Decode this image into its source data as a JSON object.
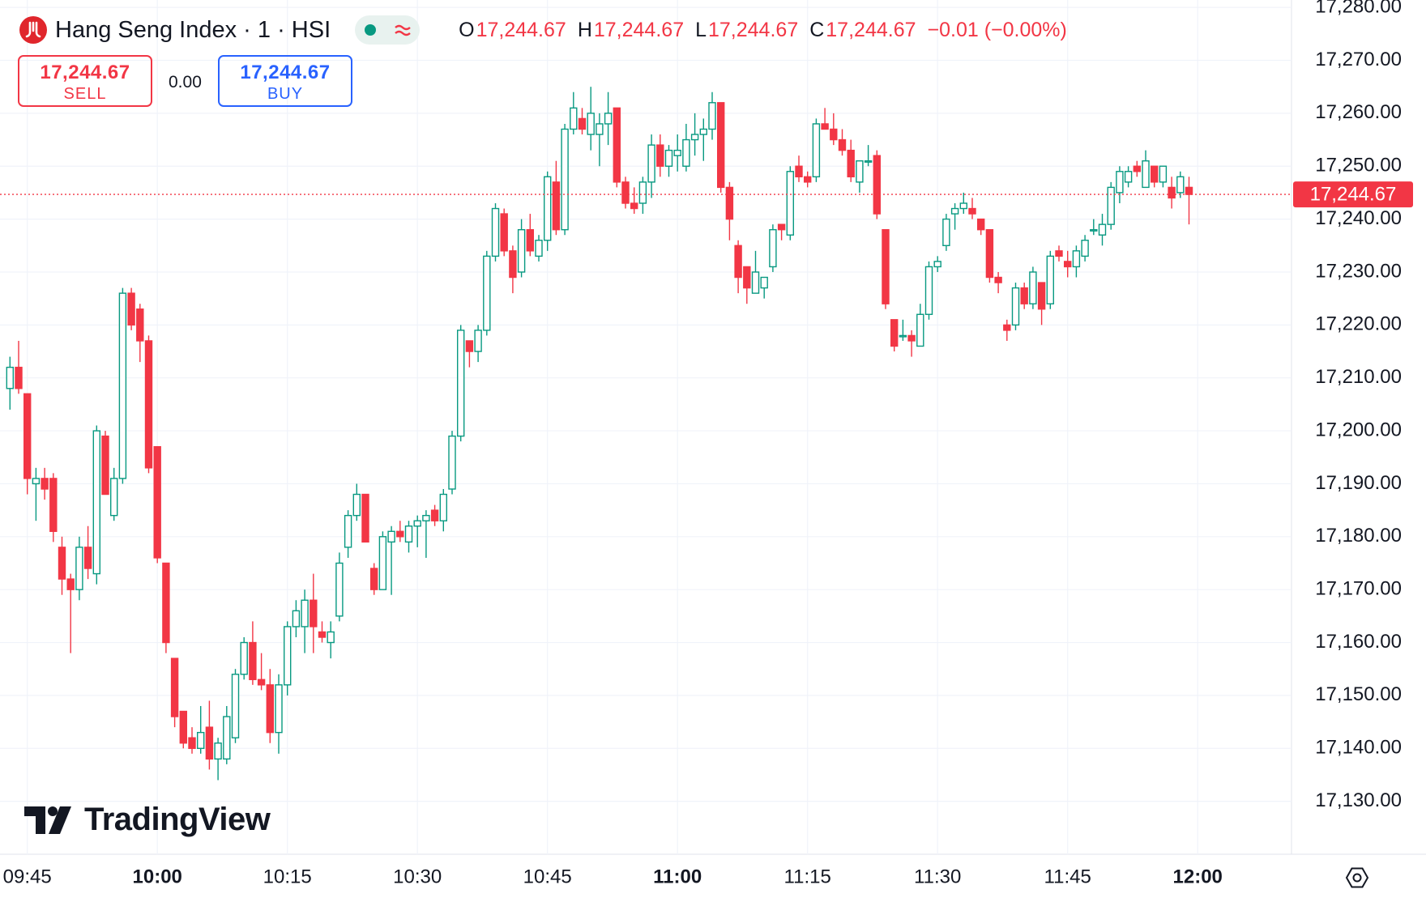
{
  "header": {
    "title": "Hang Seng Index · 1 · HSI",
    "ohlc": [
      {
        "label": "O",
        "value": "17,244.67"
      },
      {
        "label": "H",
        "value": "17,244.67"
      },
      {
        "label": "L",
        "value": "17,244.67"
      },
      {
        "label": "C",
        "value": "17,244.67"
      }
    ],
    "change": "−0.01 (−0.00%)",
    "sell": {
      "price": "17,244.67",
      "label": "SELL"
    },
    "spread": "0.00",
    "buy": {
      "price": "17,244.67",
      "label": "BUY"
    },
    "logo": "TradingView"
  },
  "chart_data": {
    "type": "candlestick",
    "up_color": "#089981",
    "down_color": "#f23645",
    "grid": true,
    "ylim": [
      17120,
      17281.4
    ],
    "yticks": [
      {
        "value": 17130,
        "label": "17,130.00"
      },
      {
        "value": 17140,
        "label": "17,140.00"
      },
      {
        "value": 17150,
        "label": "17,150.00"
      },
      {
        "value": 17160,
        "label": "17,160.00"
      },
      {
        "value": 17170,
        "label": "17,170.00"
      },
      {
        "value": 17180,
        "label": "17,180.00"
      },
      {
        "value": 17190,
        "label": "17,190.00"
      },
      {
        "value": 17200,
        "label": "17,200.00"
      },
      {
        "value": 17210,
        "label": "17,210.00"
      },
      {
        "value": 17220,
        "label": "17,220.00"
      },
      {
        "value": 17230,
        "label": "17,230.00"
      },
      {
        "value": 17240,
        "label": "17,240.00"
      },
      {
        "value": 17250,
        "label": "17,250.00"
      },
      {
        "value": 17260,
        "label": "17,260.00"
      },
      {
        "value": 17270,
        "label": "17,270.00"
      },
      {
        "value": 17280,
        "label": "17,280.00"
      }
    ],
    "xticks": [
      "09:45",
      "10:00",
      "10:15",
      "10:30",
      "10:45",
      "11:00",
      "11:15",
      "11:30",
      "11:45",
      "12:00"
    ],
    "last_price": {
      "value": 17244.67,
      "label": "17,244.67"
    },
    "x": [
      "09:43",
      "09:44",
      "09:45",
      "09:46",
      "09:47",
      "09:48",
      "09:49",
      "09:50",
      "09:51",
      "09:52",
      "09:53",
      "09:54",
      "09:55",
      "09:56",
      "09:57",
      "09:58",
      "09:59",
      "10:00",
      "10:01",
      "10:02",
      "10:03",
      "10:04",
      "10:05",
      "10:06",
      "10:07",
      "10:08",
      "10:09",
      "10:10",
      "10:11",
      "10:12",
      "10:13",
      "10:14",
      "10:15",
      "10:16",
      "10:17",
      "10:18",
      "10:19",
      "10:20",
      "10:21",
      "10:22",
      "10:23",
      "10:24",
      "10:25",
      "10:26",
      "10:27",
      "10:28",
      "10:29",
      "10:30",
      "10:31",
      "10:32",
      "10:33",
      "10:34",
      "10:35",
      "10:36",
      "10:37",
      "10:38",
      "10:39",
      "10:40",
      "10:41",
      "10:42",
      "10:43",
      "10:44",
      "10:45",
      "10:46",
      "10:47",
      "10:48",
      "10:49",
      "10:50",
      "10:51",
      "10:52",
      "10:53",
      "10:54",
      "10:55",
      "10:56",
      "10:57",
      "10:58",
      "10:59",
      "11:00",
      "11:01",
      "11:02",
      "11:03",
      "11:04",
      "11:05",
      "11:06",
      "11:07",
      "11:08",
      "11:09",
      "11:10",
      "11:11",
      "11:12",
      "11:13",
      "11:14",
      "11:15",
      "11:16",
      "11:17",
      "11:18",
      "11:19",
      "11:20",
      "11:21",
      "11:22",
      "11:23",
      "11:24",
      "11:25",
      "11:26",
      "11:27",
      "11:28",
      "11:29",
      "11:30",
      "11:31",
      "11:32",
      "11:33",
      "11:34",
      "11:35",
      "11:36",
      "11:37",
      "11:38",
      "11:39",
      "11:40",
      "11:41",
      "11:42",
      "11:43",
      "11:44",
      "11:45",
      "11:46",
      "11:47",
      "11:48",
      "11:49",
      "11:50",
      "11:51",
      "11:52",
      "11:53",
      "11:54",
      "11:55",
      "11:56",
      "11:57",
      "11:58",
      "11:59"
    ],
    "open": [
      17208,
      17212,
      17207,
      17190,
      17191,
      17191,
      17178,
      17172,
      17170,
      17178,
      17173,
      17199,
      17184,
      17191,
      17226,
      17223,
      17217,
      17197,
      17175,
      17157,
      17147,
      17142,
      17140,
      17144,
      17138,
      17138,
      17142,
      17154,
      17160,
      17153,
      17152,
      17143,
      17152,
      17163,
      17163,
      17168,
      17162,
      17160,
      17165,
      17178,
      17184,
      17188,
      17174,
      17170,
      17179,
      17181,
      17179,
      17182,
      17183,
      17185,
      17183,
      17189,
      17199,
      17217,
      17215,
      17219,
      17233,
      17241,
      17234,
      17230,
      17238,
      17233,
      17236,
      17247,
      17238,
      17257,
      17259,
      17256,
      17256,
      17258,
      17261,
      17247,
      17243,
      17243,
      17247,
      17254,
      17250,
      17252,
      17250,
      17255,
      17256,
      17257,
      17262,
      17246,
      17235,
      17231,
      17226,
      17227,
      17231,
      17239,
      17237,
      17250,
      17248,
      17248,
      17258,
      17257,
      17255,
      17253,
      17247,
      17251,
      17252,
      17238,
      17221,
      17218,
      17218,
      17216,
      17222,
      17231,
      17235,
      17241,
      17242,
      17242,
      17240,
      17238,
      17229,
      17220,
      17220,
      17227,
      17224,
      17228,
      17224,
      17234,
      17232,
      17231,
      17233,
      17238,
      17237,
      17239,
      17245,
      17247,
      17250,
      17246,
      17250,
      17247,
      17246,
      17245,
      17246
    ],
    "high": [
      17214,
      17217,
      17207,
      17193,
      17193,
      17192,
      17180,
      17173,
      17180,
      17182,
      17201,
      17200,
      17193,
      17227,
      17227,
      17224,
      17218,
      17197,
      17175,
      17157,
      17147,
      17144,
      17148,
      17149,
      17142,
      17148,
      17155,
      17161,
      17164,
      17158,
      17155,
      17154,
      17164,
      17168,
      17170,
      17173,
      17164,
      17164,
      17177,
      17185,
      17190,
      17188,
      17175,
      17181,
      17182,
      17183,
      17183,
      17184,
      17185,
      17186,
      17189,
      17200,
      17220,
      17217,
      17220,
      17234,
      17243,
      17242,
      17235,
      17240,
      17241,
      17237,
      17249,
      17251,
      17258,
      17264,
      17261,
      17265,
      17260,
      17264,
      17261,
      17248,
      17246,
      17248,
      17256,
      17256,
      17254,
      17256,
      17258,
      17260,
      17259,
      17264,
      17262,
      17247,
      17236,
      17231,
      17234,
      17229,
      17239,
      17239,
      17250,
      17252,
      17249,
      17259,
      17261,
      17260,
      17257,
      17255,
      17251,
      17254,
      17253,
      17238,
      17221,
      17221,
      17219,
      17224,
      17232,
      17233,
      17241,
      17243,
      17245,
      17244,
      17240,
      17238,
      17230,
      17221,
      17228,
      17228,
      17231,
      17228,
      17234,
      17235,
      17234,
      17235,
      17237,
      17240,
      17241,
      17247,
      17250,
      17250,
      17251,
      17253,
      17250,
      17250,
      17248,
      17249,
      17248
    ],
    "low": [
      17204,
      17207,
      17188,
      17183,
      17187,
      17179,
      17169,
      17158,
      17168,
      17172,
      17171,
      17188,
      17183,
      17190,
      17219,
      17213,
      17192,
      17175,
      17158,
      17144,
      17140,
      17139,
      17139,
      17136,
      17134,
      17137,
      17141,
      17153,
      17152,
      17151,
      17141,
      17139,
      17150,
      17161,
      17158,
      17158,
      17160,
      17157,
      17164,
      17176,
      17183,
      17179,
      17169,
      17170,
      17169,
      17179,
      17177,
      17178,
      17176,
      17182,
      17181,
      17188,
      17198,
      17212,
      17213,
      17218,
      17232,
      17233,
      17226,
      17229,
      17233,
      17232,
      17234,
      17237,
      17237,
      17256,
      17256,
      17253,
      17250,
      17254,
      17246,
      17242,
      17241,
      17241,
      17244,
      17248,
      17248,
      17249,
      17249,
      17252,
      17251,
      17255,
      17245,
      17236,
      17226,
      17224,
      17226,
      17225,
      17230,
      17236,
      17236,
      17247,
      17246,
      17247,
      17257,
      17254,
      17252,
      17247,
      17245,
      17250,
      17240,
      17223,
      17215,
      17217,
      17214,
      17216,
      17221,
      17230,
      17234,
      17238,
      17241,
      17240,
      17237,
      17228,
      17226,
      17217,
      17219,
      17223,
      17223,
      17220,
      17223,
      17232,
      17229,
      17229,
      17232,
      17237,
      17235,
      17238,
      17243,
      17246,
      17248,
      17246,
      17246,
      17246,
      17242,
      17244,
      17239
    ],
    "close": [
      17212,
      17208,
      17191,
      17191,
      17189,
      17181,
      17172,
      17170,
      17178,
      17174,
      17200,
      17188,
      17191,
      17226,
      17220,
      17217,
      17193,
      17176,
      17160,
      17146,
      17141,
      17140,
      17143,
      17138,
      17141,
      17146,
      17154,
      17160,
      17153,
      17152,
      17143,
      17152,
      17163,
      17166,
      17168,
      17163,
      17161,
      17162,
      17175,
      17184,
      17188,
      17179,
      17170,
      17180,
      17181,
      17180,
      17182,
      17183,
      17184,
      17183,
      17188,
      17199,
      17219,
      17215,
      17219,
      17233,
      17242,
      17234,
      17229,
      17238,
      17234,
      17236,
      17248,
      17238,
      17257,
      17261,
      17257,
      17260,
      17258,
      17260,
      17247,
      17243,
      17242,
      17247,
      17254,
      17250,
      17253,
      17253,
      17255,
      17256,
      17257,
      17262,
      17246,
      17240,
      17229,
      17227,
      17230,
      17229,
      17238,
      17238,
      17249,
      17248,
      17247,
      17258,
      17257,
      17255,
      17253,
      17248,
      17251,
      17251,
      17241,
      17224,
      17216,
      17218,
      17217,
      17222,
      17231,
      17232,
      17240,
      17242,
      17243,
      17241,
      17238,
      17229,
      17228,
      17219,
      17227,
      17224,
      17230,
      17223,
      17233,
      17233,
      17231,
      17234,
      17236,
      17238,
      17239,
      17246,
      17249,
      17249,
      17249,
      17251,
      17247,
      17250,
      17244,
      17248,
      17244.67
    ]
  }
}
